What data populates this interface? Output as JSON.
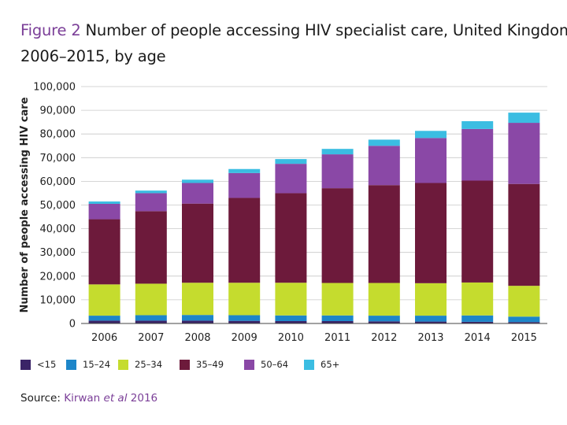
{
  "title": {
    "figure_label": "Figure 2",
    "line1": "Number of people accessing HIV specialist care, United Kingdom,",
    "line2": "2006–2015, by age"
  },
  "source": {
    "label": "Source:",
    "author": "Kirwan",
    "etal": "et al",
    "year": "2016"
  },
  "colors": {
    "fig_label": "#7b3f98",
    "under_15": "#3a2467",
    "15_24": "#1d86c9",
    "25_34": "#c5dc2e",
    "35_49": "#6d1a3b",
    "50_64": "#8a48a6",
    "65_plus": "#3bbde2"
  },
  "chart_data": {
    "type": "bar",
    "stacked": true,
    "ylabel": "Number of people accessing HIV care",
    "xlabel": "",
    "ylim": [
      0,
      100000
    ],
    "yticks": [
      0,
      10000,
      20000,
      30000,
      40000,
      50000,
      60000,
      70000,
      80000,
      90000,
      100000
    ],
    "ytick_labels": [
      "0",
      "10,000",
      "20,000",
      "30,000",
      "40,000",
      "50,000",
      "60,000",
      "70,000",
      "80,000",
      "90,000",
      "100,000"
    ],
    "grid": true,
    "legend_position": "bottom",
    "categories": [
      "2006",
      "2007",
      "2008",
      "2009",
      "2010",
      "2011",
      "2012",
      "2013",
      "2014",
      "2015"
    ],
    "series": [
      {
        "name": "<15",
        "color": "#3a2467",
        "values": [
          1200,
          1200,
          1200,
          1100,
          1000,
          1000,
          900,
          800,
          700,
          600
        ]
      },
      {
        "name": "15–24",
        "color": "#1d86c9",
        "values": [
          2100,
          2300,
          2400,
          2400,
          2400,
          2400,
          2400,
          2500,
          2700,
          2300
        ]
      },
      {
        "name": "25–34",
        "color": "#c5dc2e",
        "values": [
          13200,
          13300,
          13600,
          13700,
          13800,
          13700,
          13800,
          13700,
          13900,
          13000
        ]
      },
      {
        "name": "35–49",
        "color": "#6d1a3b",
        "values": [
          27500,
          30600,
          33400,
          35800,
          37800,
          40000,
          41300,
          42300,
          43000,
          43000
        ]
      },
      {
        "name": "50–64",
        "color": "#8a48a6",
        "values": [
          6500,
          7600,
          8700,
          10500,
          12400,
          14300,
          16600,
          19000,
          21800,
          25800
        ]
      },
      {
        "name": "65+",
        "color": "#3bbde2",
        "values": [
          1000,
          1100,
          1400,
          1700,
          2000,
          2300,
          2600,
          3000,
          3300,
          4300
        ]
      }
    ]
  }
}
